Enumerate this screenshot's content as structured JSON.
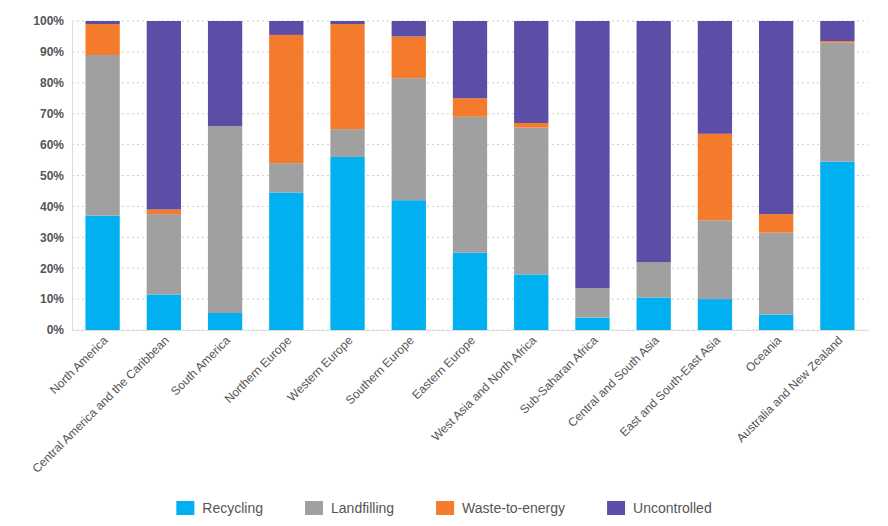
{
  "chart_data": {
    "type": "bar",
    "stacked": true,
    "grid": true,
    "legend": "bottom",
    "categories": [
      "North America",
      "Central America and the Caribbean",
      "South America",
      "Northern Europe",
      "Western Europe",
      "Southern Europe",
      "Eastern Europe",
      "West Asia and North Africa",
      "Sub-Saharan Africa",
      "Central and South Asia",
      "East and South-East Asia",
      "Oceania",
      "Australia and New Zealand"
    ],
    "series": [
      {
        "name": "Recycling",
        "color": "#00b0f0",
        "values": [
          37,
          11.5,
          5.5,
          44.5,
          56,
          42,
          25,
          18,
          4,
          10.5,
          10,
          5,
          54.5
        ]
      },
      {
        "name": "Landfilling",
        "color": "#a0a0a0",
        "values": [
          52,
          26,
          60.5,
          9.5,
          9,
          39.5,
          44,
          47.5,
          9.5,
          11.5,
          25.5,
          26.5,
          38.5
        ]
      },
      {
        "name": "Waste-to-energy",
        "color": "#f47b2b",
        "values": [
          10,
          1.5,
          0,
          41.5,
          34,
          13.5,
          6,
          1.5,
          0,
          0,
          28,
          6,
          0.5
        ]
      },
      {
        "name": "Uncontrolled",
        "color": "#5c4da6",
        "values": [
          1,
          61,
          34,
          4.5,
          1,
          5,
          25,
          33,
          86.5,
          78,
          36.5,
          62.5,
          6.5
        ]
      }
    ],
    "ylim": [
      0,
      100
    ],
    "yticks": [
      {
        "value": 0,
        "label": "0%"
      },
      {
        "value": 10,
        "label": "10%"
      },
      {
        "value": 20,
        "label": "20%"
      },
      {
        "value": 30,
        "label": "30%"
      },
      {
        "value": 40,
        "label": "40%"
      },
      {
        "value": 50,
        "label": "50%"
      },
      {
        "value": 60,
        "label": "60%"
      },
      {
        "value": 70,
        "label": "70%"
      },
      {
        "value": 80,
        "label": "80%"
      },
      {
        "value": 90,
        "label": "90%"
      },
      {
        "value": 100,
        "label": "100%"
      }
    ]
  }
}
